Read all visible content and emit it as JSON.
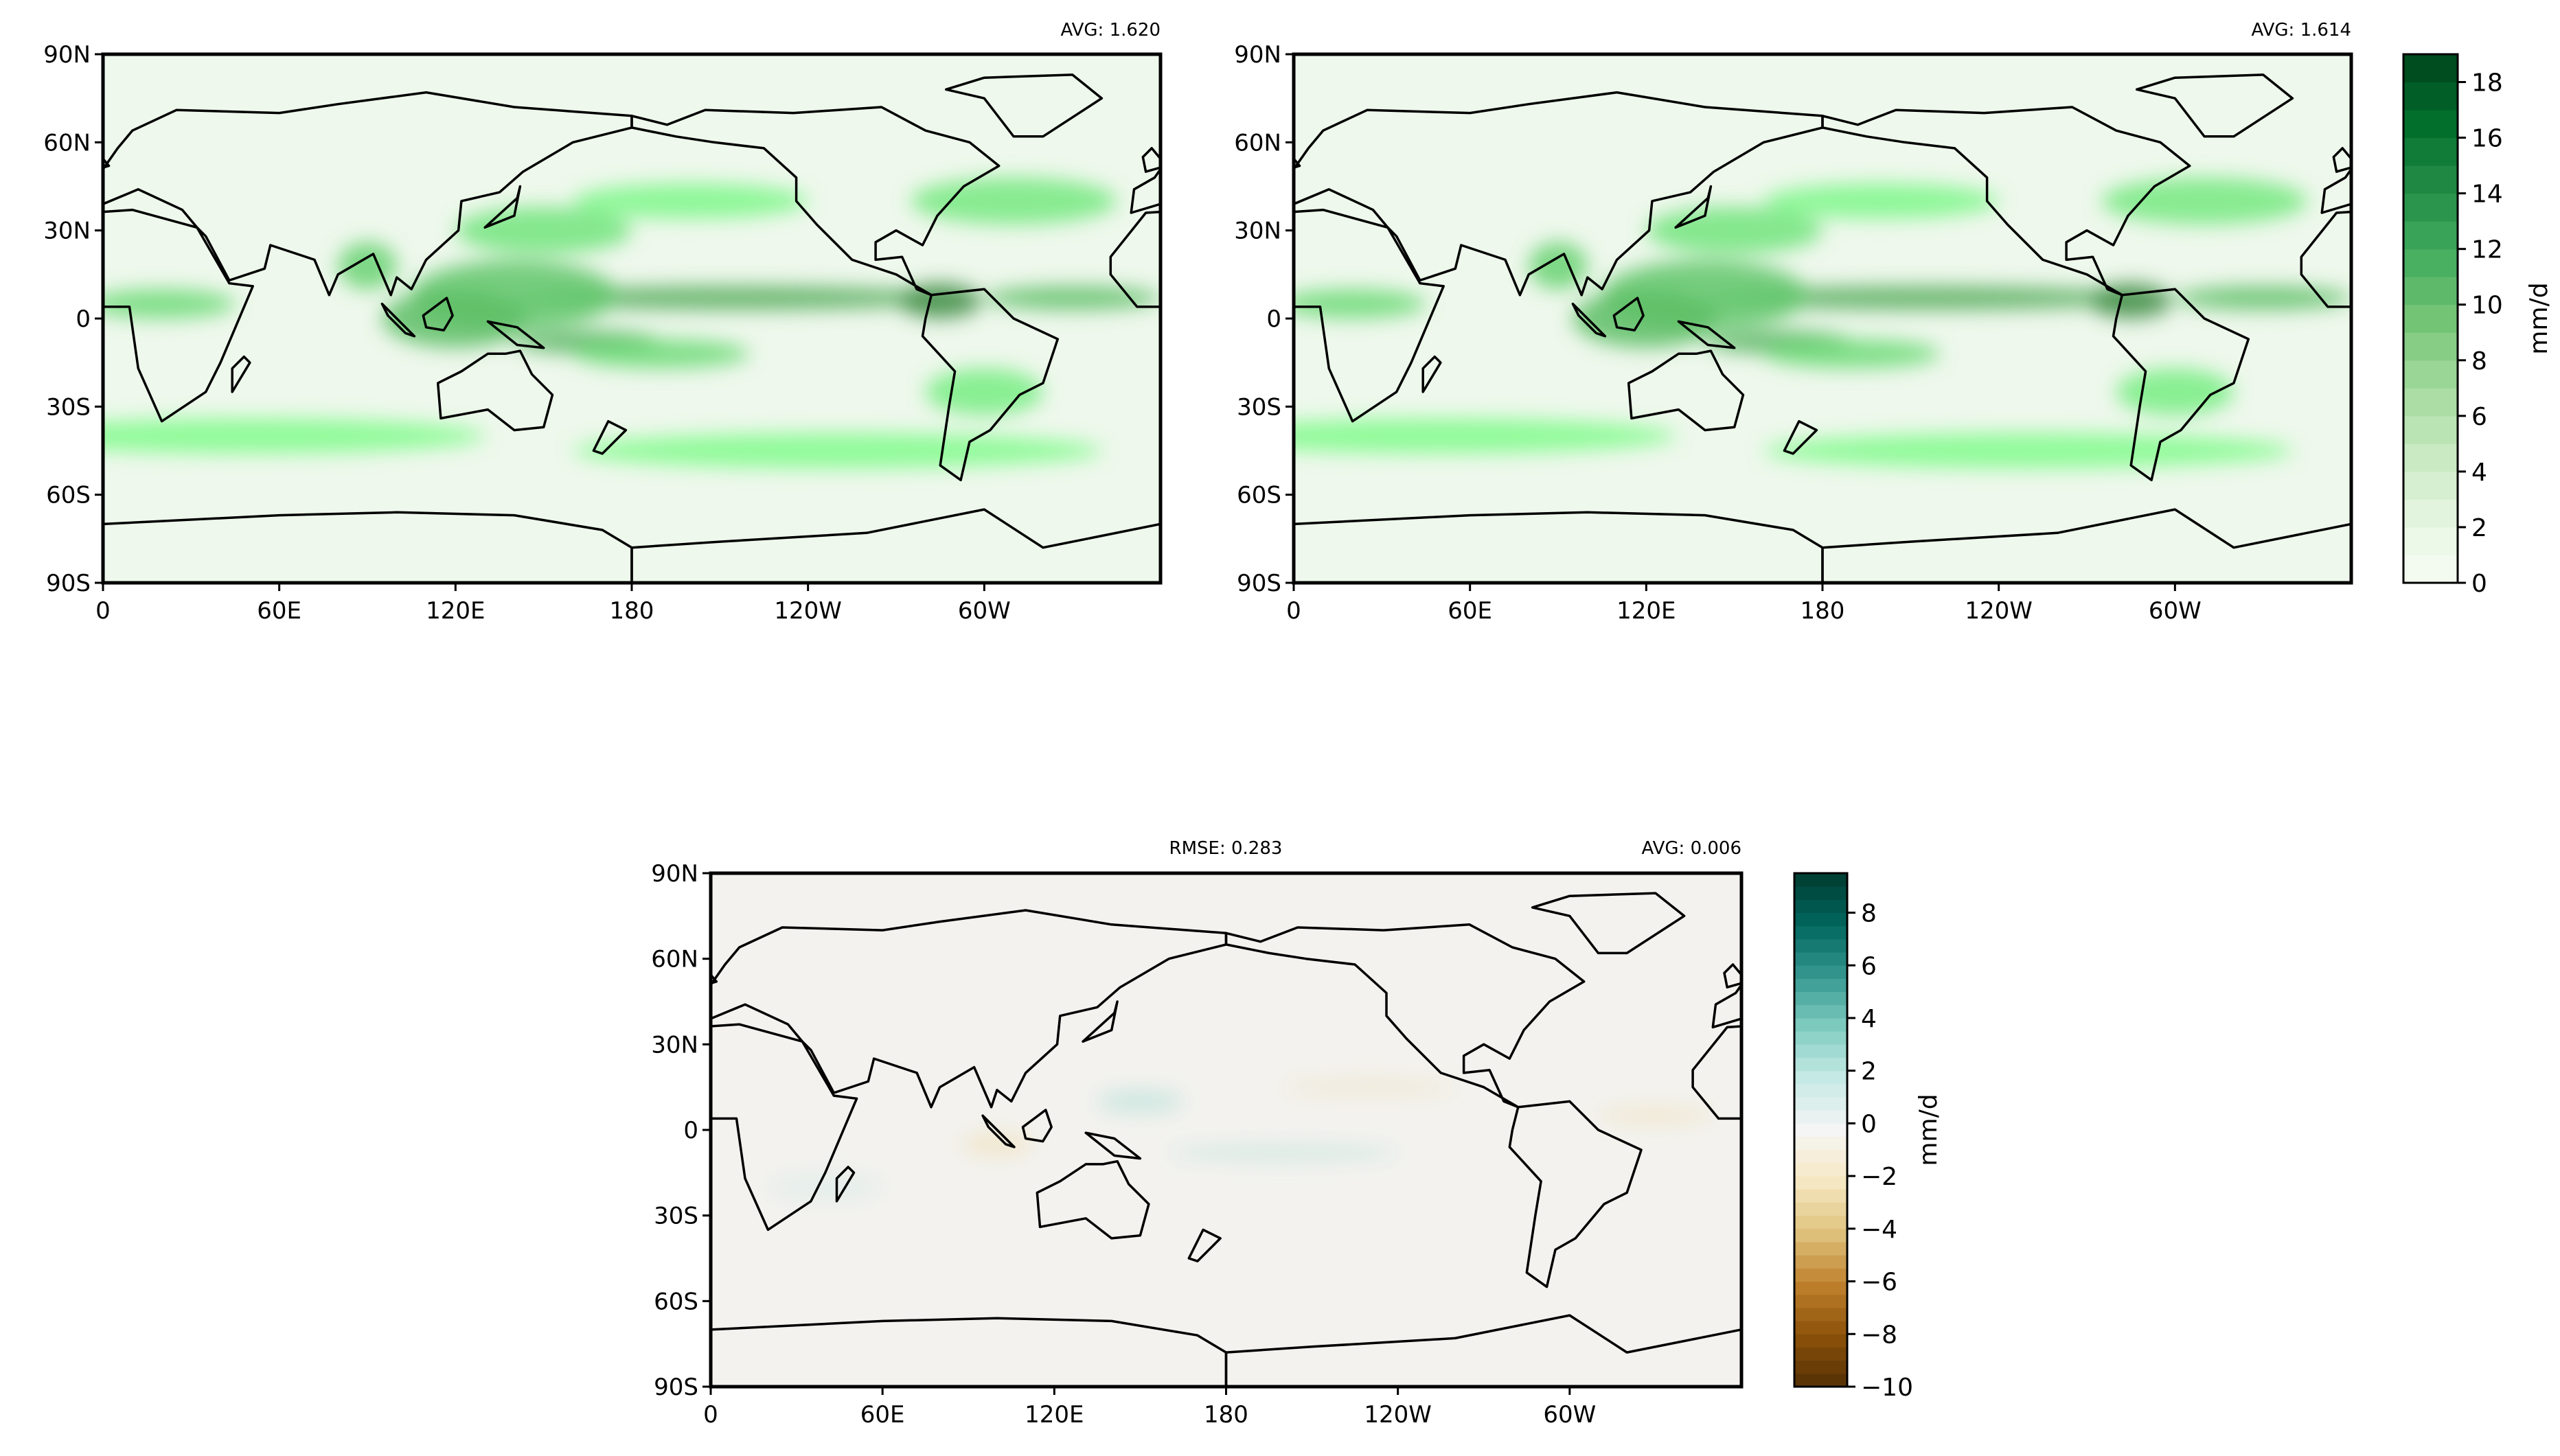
{
  "chart_data": [
    {
      "type": "heatmap",
      "panel": "top-left",
      "annotation_right": "AVG: 1.620",
      "x_ticks": [
        "0",
        "60E",
        "120E",
        "180",
        "120W",
        "60W"
      ],
      "x_tick_values": [
        0,
        60,
        120,
        180,
        240,
        300
      ],
      "y_ticks": [
        "90N",
        "60N",
        "30N",
        "0",
        "30S",
        "60S",
        "90S"
      ],
      "y_tick_values": [
        90,
        60,
        30,
        0,
        -30,
        -60,
        -90
      ],
      "xlim": [
        0,
        360
      ],
      "ylim": [
        -90,
        90
      ],
      "colormap": "Greens",
      "grid": false
    },
    {
      "type": "heatmap",
      "panel": "top-right",
      "annotation_right": "AVG: 1.614",
      "x_ticks": [
        "0",
        "60E",
        "120E",
        "180",
        "120W",
        "60W"
      ],
      "x_tick_values": [
        0,
        60,
        120,
        180,
        240,
        300
      ],
      "y_ticks": [
        "90N",
        "60N",
        "30N",
        "0",
        "30S",
        "60S",
        "90S"
      ],
      "y_tick_values": [
        90,
        60,
        30,
        0,
        -30,
        -60,
        -90
      ],
      "xlim": [
        0,
        360
      ],
      "ylim": [
        -90,
        90
      ],
      "colormap": "Greens",
      "grid": false,
      "colorbar": {
        "label": "mm/d",
        "range": [
          0,
          19
        ],
        "ticks": [
          "0",
          "2",
          "4",
          "6",
          "8",
          "10",
          "12",
          "14",
          "16",
          "18"
        ],
        "tick_values": [
          0,
          2,
          4,
          6,
          8,
          10,
          12,
          14,
          16,
          18
        ],
        "levels": 19
      }
    },
    {
      "type": "heatmap",
      "panel": "bottom",
      "annotation_left": "RMSE: 0.283",
      "annotation_right": "AVG: 0.006",
      "x_ticks": [
        "0",
        "60E",
        "120E",
        "180",
        "120W",
        "60W"
      ],
      "x_tick_values": [
        0,
        60,
        120,
        180,
        240,
        300
      ],
      "y_ticks": [
        "90N",
        "60N",
        "30N",
        "0",
        "30S",
        "60S",
        "90S"
      ],
      "y_tick_values": [
        90,
        60,
        30,
        0,
        -30,
        -60,
        -90
      ],
      "xlim": [
        0,
        360
      ],
      "ylim": [
        -90,
        90
      ],
      "colormap": "BrBG",
      "grid": false,
      "colorbar": {
        "label": "mm/d",
        "range": [
          -10,
          9.5
        ],
        "ticks": [
          "−10",
          "−8",
          "−6",
          "−4",
          "−2",
          "0",
          "2",
          "4",
          "6",
          "8"
        ],
        "tick_values": [
          -10,
          -8,
          -6,
          -4,
          -2,
          0,
          2,
          4,
          6,
          8
        ],
        "levels": 39
      }
    }
  ]
}
